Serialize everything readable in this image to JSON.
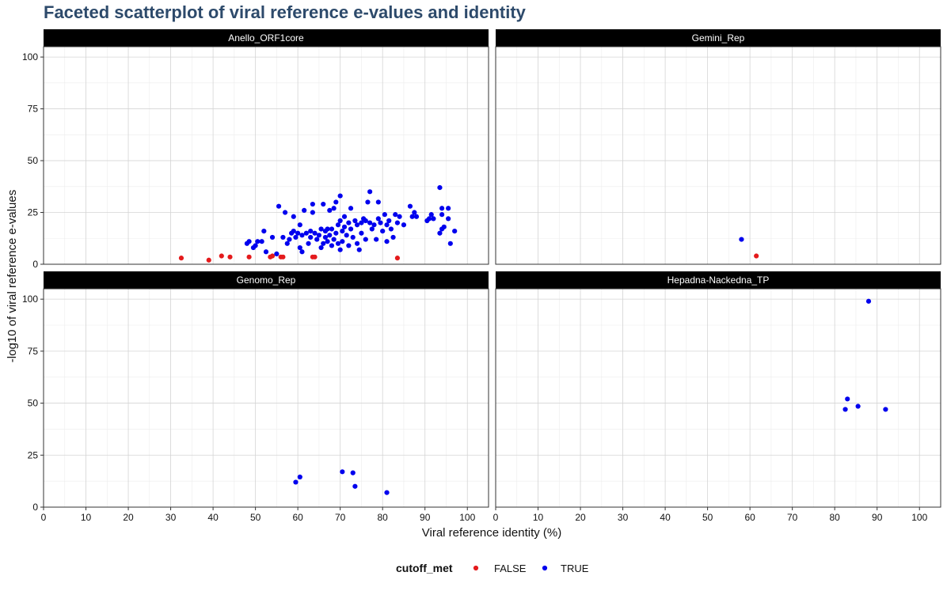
{
  "chart_data": {
    "type": "scatter",
    "title": "Faceted scatterplot of viral reference e-values and identity",
    "xlabel": "Viral reference identity (%)",
    "ylabel": "-log10 of viral reference e-values",
    "xlim": [
      0,
      105
    ],
    "ylim": [
      0,
      105
    ],
    "x_ticks": [
      0,
      10,
      20,
      30,
      40,
      50,
      60,
      70,
      80,
      90,
      100
    ],
    "y_ticks": [
      0,
      25,
      50,
      75,
      100
    ],
    "grid": true,
    "legend": {
      "title": "cutoff_met",
      "placement": "bottom",
      "entries": [
        {
          "label": "FALSE",
          "color": "#e41a1c"
        },
        {
          "label": "TRUE",
          "color": "#0000ee"
        }
      ]
    },
    "facets": [
      {
        "name": "Anello_ORF1core",
        "points": [
          {
            "x": 32.5,
            "y": 3,
            "c": "FALSE"
          },
          {
            "x": 39,
            "y": 2,
            "c": "FALSE"
          },
          {
            "x": 42,
            "y": 4,
            "c": "FALSE"
          },
          {
            "x": 44,
            "y": 3.5,
            "c": "FALSE"
          },
          {
            "x": 48.5,
            "y": 3.5,
            "c": "FALSE"
          },
          {
            "x": 53.5,
            "y": 3.5,
            "c": "FALSE"
          },
          {
            "x": 54,
            "y": 4,
            "c": "FALSE"
          },
          {
            "x": 56,
            "y": 3.5,
            "c": "FALSE"
          },
          {
            "x": 56.5,
            "y": 3.5,
            "c": "FALSE"
          },
          {
            "x": 63.5,
            "y": 3.5,
            "c": "FALSE"
          },
          {
            "x": 64,
            "y": 3.5,
            "c": "FALSE"
          },
          {
            "x": 83.5,
            "y": 3,
            "c": "FALSE"
          },
          {
            "x": 48,
            "y": 10,
            "c": "TRUE"
          },
          {
            "x": 48.5,
            "y": 11,
            "c": "TRUE"
          },
          {
            "x": 49.5,
            "y": 8,
            "c": "TRUE"
          },
          {
            "x": 50,
            "y": 9,
            "c": "TRUE"
          },
          {
            "x": 50.5,
            "y": 11,
            "c": "TRUE"
          },
          {
            "x": 51.5,
            "y": 11,
            "c": "TRUE"
          },
          {
            "x": 52,
            "y": 16,
            "c": "TRUE"
          },
          {
            "x": 52.5,
            "y": 6,
            "c": "TRUE"
          },
          {
            "x": 54,
            "y": 13,
            "c": "TRUE"
          },
          {
            "x": 55,
            "y": 5,
            "c": "TRUE"
          },
          {
            "x": 55.5,
            "y": 28,
            "c": "TRUE"
          },
          {
            "x": 56.5,
            "y": 13,
            "c": "TRUE"
          },
          {
            "x": 57,
            "y": 25,
            "c": "TRUE"
          },
          {
            "x": 57.5,
            "y": 10,
            "c": "TRUE"
          },
          {
            "x": 58,
            "y": 12,
            "c": "TRUE"
          },
          {
            "x": 58.5,
            "y": 15,
            "c": "TRUE"
          },
          {
            "x": 59,
            "y": 23,
            "c": "TRUE"
          },
          {
            "x": 59,
            "y": 16,
            "c": "TRUE"
          },
          {
            "x": 59.5,
            "y": 13,
            "c": "TRUE"
          },
          {
            "x": 60,
            "y": 15,
            "c": "TRUE"
          },
          {
            "x": 60.5,
            "y": 8,
            "c": "TRUE"
          },
          {
            "x": 60.5,
            "y": 19,
            "c": "TRUE"
          },
          {
            "x": 61,
            "y": 14,
            "c": "TRUE"
          },
          {
            "x": 61,
            "y": 6,
            "c": "TRUE"
          },
          {
            "x": 61.5,
            "y": 26,
            "c": "TRUE"
          },
          {
            "x": 62,
            "y": 15,
            "c": "TRUE"
          },
          {
            "x": 62.5,
            "y": 10,
            "c": "TRUE"
          },
          {
            "x": 63,
            "y": 13,
            "c": "TRUE"
          },
          {
            "x": 63,
            "y": 16,
            "c": "TRUE"
          },
          {
            "x": 63.5,
            "y": 25,
            "c": "TRUE"
          },
          {
            "x": 63.5,
            "y": 29,
            "c": "TRUE"
          },
          {
            "x": 64,
            "y": 15,
            "c": "TRUE"
          },
          {
            "x": 64.5,
            "y": 12,
            "c": "TRUE"
          },
          {
            "x": 65,
            "y": 14,
            "c": "TRUE"
          },
          {
            "x": 65.5,
            "y": 8,
            "c": "TRUE"
          },
          {
            "x": 65.5,
            "y": 17,
            "c": "TRUE"
          },
          {
            "x": 66,
            "y": 10,
            "c": "TRUE"
          },
          {
            "x": 66,
            "y": 29,
            "c": "TRUE"
          },
          {
            "x": 66.5,
            "y": 13,
            "c": "TRUE"
          },
          {
            "x": 66.5,
            "y": 16,
            "c": "TRUE"
          },
          {
            "x": 67,
            "y": 11,
            "c": "TRUE"
          },
          {
            "x": 67,
            "y": 17,
            "c": "TRUE"
          },
          {
            "x": 67.5,
            "y": 26,
            "c": "TRUE"
          },
          {
            "x": 67.5,
            "y": 14,
            "c": "TRUE"
          },
          {
            "x": 68,
            "y": 17,
            "c": "TRUE"
          },
          {
            "x": 68,
            "y": 9,
            "c": "TRUE"
          },
          {
            "x": 68.5,
            "y": 27,
            "c": "TRUE"
          },
          {
            "x": 68.5,
            "y": 12,
            "c": "TRUE"
          },
          {
            "x": 69,
            "y": 30,
            "c": "TRUE"
          },
          {
            "x": 69,
            "y": 15,
            "c": "TRUE"
          },
          {
            "x": 69.5,
            "y": 19,
            "c": "TRUE"
          },
          {
            "x": 69.5,
            "y": 10,
            "c": "TRUE"
          },
          {
            "x": 70,
            "y": 33,
            "c": "TRUE"
          },
          {
            "x": 70,
            "y": 7,
            "c": "TRUE"
          },
          {
            "x": 70,
            "y": 21,
            "c": "TRUE"
          },
          {
            "x": 70.5,
            "y": 16,
            "c": "TRUE"
          },
          {
            "x": 70.5,
            "y": 11,
            "c": "TRUE"
          },
          {
            "x": 71,
            "y": 18,
            "c": "TRUE"
          },
          {
            "x": 71,
            "y": 23,
            "c": "TRUE"
          },
          {
            "x": 71.5,
            "y": 14,
            "c": "TRUE"
          },
          {
            "x": 72,
            "y": 20,
            "c": "TRUE"
          },
          {
            "x": 72,
            "y": 9,
            "c": "TRUE"
          },
          {
            "x": 72.5,
            "y": 27,
            "c": "TRUE"
          },
          {
            "x": 72.5,
            "y": 17,
            "c": "TRUE"
          },
          {
            "x": 73,
            "y": 13,
            "c": "TRUE"
          },
          {
            "x": 73.5,
            "y": 21,
            "c": "TRUE"
          },
          {
            "x": 74,
            "y": 19,
            "c": "TRUE"
          },
          {
            "x": 74,
            "y": 10,
            "c": "TRUE"
          },
          {
            "x": 74.5,
            "y": 7,
            "c": "TRUE"
          },
          {
            "x": 75,
            "y": 20,
            "c": "TRUE"
          },
          {
            "x": 75,
            "y": 15,
            "c": "TRUE"
          },
          {
            "x": 75.5,
            "y": 22,
            "c": "TRUE"
          },
          {
            "x": 76,
            "y": 21,
            "c": "TRUE"
          },
          {
            "x": 76,
            "y": 12,
            "c": "TRUE"
          },
          {
            "x": 76.5,
            "y": 30,
            "c": "TRUE"
          },
          {
            "x": 77,
            "y": 35,
            "c": "TRUE"
          },
          {
            "x": 77,
            "y": 20,
            "c": "TRUE"
          },
          {
            "x": 77.5,
            "y": 17,
            "c": "TRUE"
          },
          {
            "x": 78,
            "y": 19,
            "c": "TRUE"
          },
          {
            "x": 78.5,
            "y": 12,
            "c": "TRUE"
          },
          {
            "x": 79,
            "y": 30,
            "c": "TRUE"
          },
          {
            "x": 79,
            "y": 22,
            "c": "TRUE"
          },
          {
            "x": 79.5,
            "y": 20,
            "c": "TRUE"
          },
          {
            "x": 80,
            "y": 16,
            "c": "TRUE"
          },
          {
            "x": 80.5,
            "y": 24,
            "c": "TRUE"
          },
          {
            "x": 81,
            "y": 11,
            "c": "TRUE"
          },
          {
            "x": 81,
            "y": 19,
            "c": "TRUE"
          },
          {
            "x": 81.5,
            "y": 21,
            "c": "TRUE"
          },
          {
            "x": 82,
            "y": 17,
            "c": "TRUE"
          },
          {
            "x": 82.5,
            "y": 13,
            "c": "TRUE"
          },
          {
            "x": 83,
            "y": 24,
            "c": "TRUE"
          },
          {
            "x": 83.5,
            "y": 20,
            "c": "TRUE"
          },
          {
            "x": 84,
            "y": 23,
            "c": "TRUE"
          },
          {
            "x": 85,
            "y": 19,
            "c": "TRUE"
          },
          {
            "x": 86.5,
            "y": 28,
            "c": "TRUE"
          },
          {
            "x": 87,
            "y": 23,
            "c": "TRUE"
          },
          {
            "x": 87.5,
            "y": 25,
            "c": "TRUE"
          },
          {
            "x": 88,
            "y": 23,
            "c": "TRUE"
          },
          {
            "x": 90.5,
            "y": 21,
            "c": "TRUE"
          },
          {
            "x": 91,
            "y": 22,
            "c": "TRUE"
          },
          {
            "x": 91.5,
            "y": 24,
            "c": "TRUE"
          },
          {
            "x": 92,
            "y": 22,
            "c": "TRUE"
          },
          {
            "x": 93.5,
            "y": 37,
            "c": "TRUE"
          },
          {
            "x": 93.5,
            "y": 15,
            "c": "TRUE"
          },
          {
            "x": 94,
            "y": 27,
            "c": "TRUE"
          },
          {
            "x": 94,
            "y": 24,
            "c": "TRUE"
          },
          {
            "x": 94,
            "y": 17,
            "c": "TRUE"
          },
          {
            "x": 94.5,
            "y": 18,
            "c": "TRUE"
          },
          {
            "x": 95.5,
            "y": 27,
            "c": "TRUE"
          },
          {
            "x": 95.5,
            "y": 22,
            "c": "TRUE"
          },
          {
            "x": 96,
            "y": 10,
            "c": "TRUE"
          },
          {
            "x": 97,
            "y": 16,
            "c": "TRUE"
          }
        ]
      },
      {
        "name": "Gemini_Rep",
        "points": [
          {
            "x": 58,
            "y": 12,
            "c": "TRUE"
          },
          {
            "x": 61.5,
            "y": 4,
            "c": "FALSE"
          }
        ]
      },
      {
        "name": "Genomo_Rep",
        "points": [
          {
            "x": 59.5,
            "y": 12,
            "c": "TRUE"
          },
          {
            "x": 60.5,
            "y": 14.5,
            "c": "TRUE"
          },
          {
            "x": 70.5,
            "y": 17,
            "c": "TRUE"
          },
          {
            "x": 73,
            "y": 16.5,
            "c": "TRUE"
          },
          {
            "x": 73.5,
            "y": 10,
            "c": "TRUE"
          },
          {
            "x": 81,
            "y": 7,
            "c": "TRUE"
          }
        ]
      },
      {
        "name": "Hepadna-Nackedna_TP",
        "points": [
          {
            "x": 82.5,
            "y": 47,
            "c": "TRUE"
          },
          {
            "x": 83,
            "y": 52,
            "c": "TRUE"
          },
          {
            "x": 85.5,
            "y": 48.5,
            "c": "TRUE"
          },
          {
            "x": 88,
            "y": 99,
            "c": "TRUE"
          },
          {
            "x": 92,
            "y": 47,
            "c": "TRUE"
          }
        ]
      }
    ]
  }
}
